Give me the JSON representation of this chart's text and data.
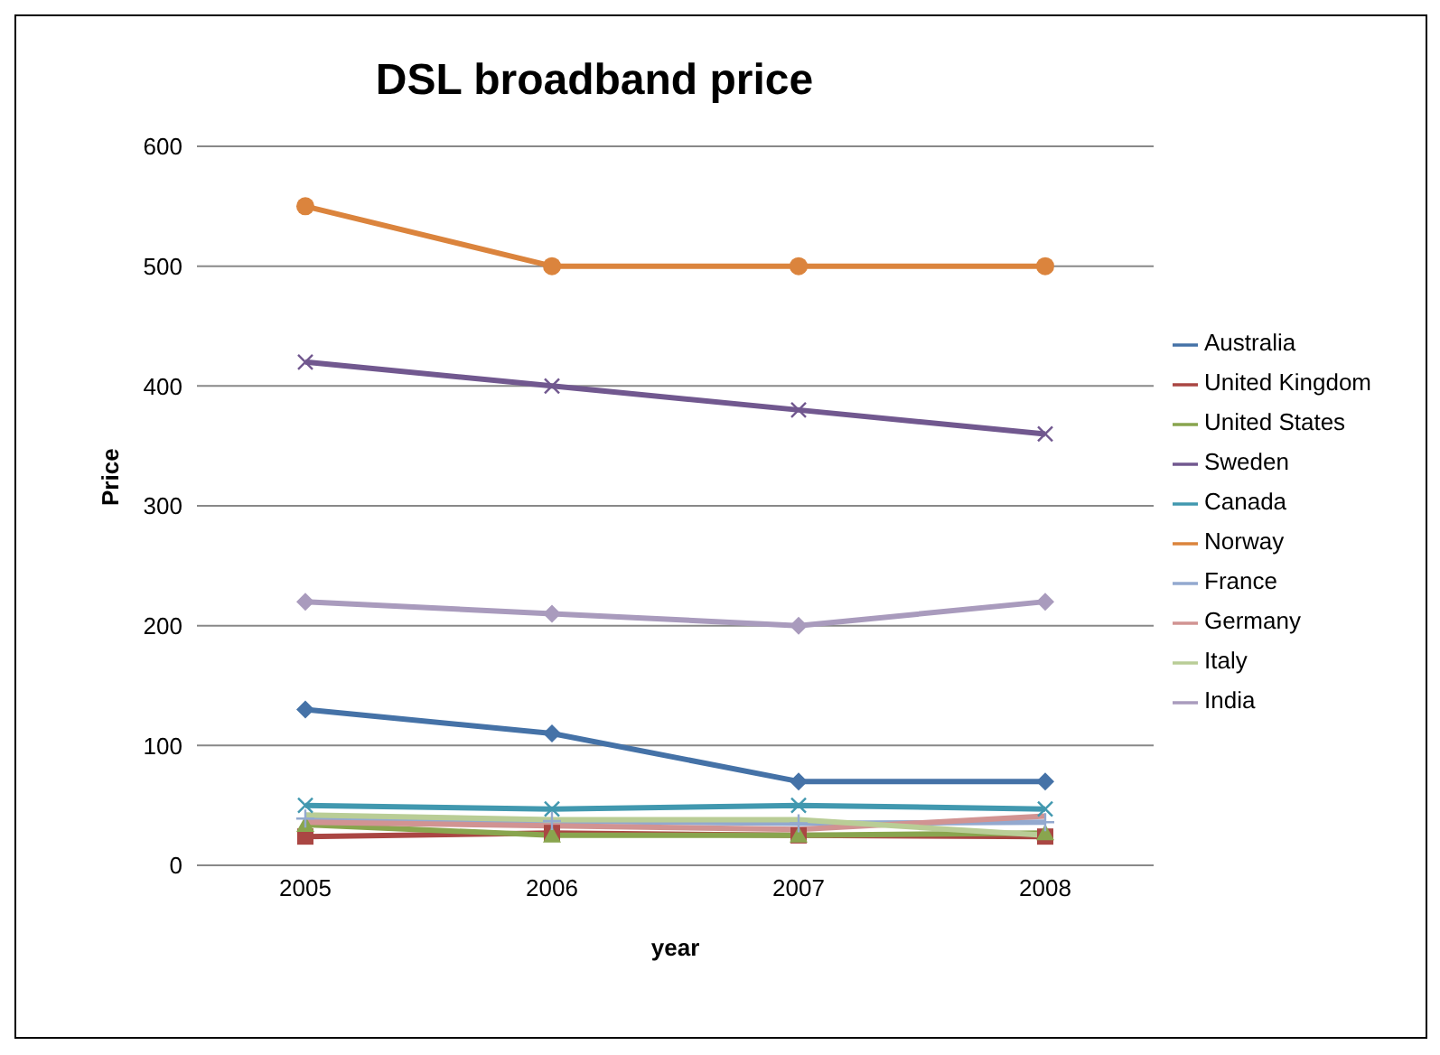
{
  "chart_data": {
    "type": "line",
    "title": "DSL broadband price",
    "xlabel": "year",
    "ylabel": "Price",
    "categories": [
      "2005",
      "2006",
      "2007",
      "2008"
    ],
    "ylim": [
      0,
      600
    ],
    "yticks": [
      0,
      100,
      200,
      300,
      400,
      500,
      600
    ],
    "grid": "y",
    "legend": "right",
    "series": [
      {
        "name": "Australia",
        "color": "#4572a7",
        "marker": "diamond",
        "values": [
          130,
          110,
          70,
          70
        ]
      },
      {
        "name": "United Kingdom",
        "color": "#aa4643",
        "marker": "square",
        "values": [
          24,
          27,
          25,
          24
        ]
      },
      {
        "name": "United States",
        "color": "#89a54e",
        "marker": "triangle",
        "values": [
          34,
          25,
          25,
          27
        ]
      },
      {
        "name": "Sweden",
        "color": "#71588f",
        "marker": "cross",
        "values": [
          420,
          400,
          380,
          360
        ]
      },
      {
        "name": "Canada",
        "color": "#4198af",
        "marker": "cross",
        "values": [
          50,
          47,
          50,
          47
        ]
      },
      {
        "name": "Norway",
        "color": "#db843d",
        "marker": "circle",
        "values": [
          550,
          500,
          500,
          500
        ]
      },
      {
        "name": "France",
        "color": "#93a9cf",
        "marker": "plus",
        "values": [
          39,
          37,
          35,
          36
        ]
      },
      {
        "name": "Germany",
        "color": "#d19392",
        "marker": "none",
        "values": [
          36,
          33,
          30,
          41
        ]
      },
      {
        "name": "Italy",
        "color": "#b9cd96",
        "marker": "none",
        "values": [
          42,
          38,
          38,
          25
        ]
      },
      {
        "name": "India",
        "color": "#a99bbd",
        "marker": "diamond",
        "values": [
          220,
          210,
          200,
          220
        ]
      }
    ]
  }
}
